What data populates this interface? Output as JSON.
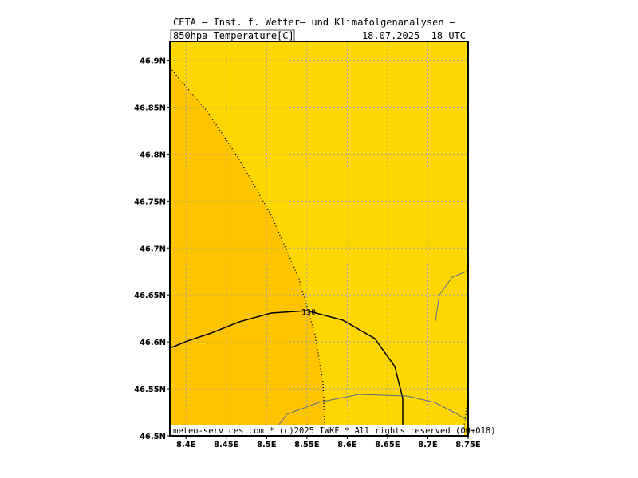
{
  "header": {
    "line1": "CETA – Inst. f. Wetter– und Klimafolgenanalysen –",
    "variable": "850hpa_Temperature[C]",
    "datetime": "18.07.2025  18 UTC"
  },
  "map": {
    "xlim": [
      8.38,
      8.75
    ],
    "ylim": [
      46.5,
      46.92
    ],
    "xticks": [
      {
        "value": 8.4,
        "label": "8.4E"
      },
      {
        "value": 8.45,
        "label": "8.45E"
      },
      {
        "value": 8.5,
        "label": "8.5E"
      },
      {
        "value": 8.55,
        "label": "8.55E"
      },
      {
        "value": 8.6,
        "label": "8.6E"
      },
      {
        "value": 8.65,
        "label": "8.65E"
      },
      {
        "value": 8.7,
        "label": "8.7E"
      },
      {
        "value": 8.75,
        "label": "8.75E"
      }
    ],
    "yticks": [
      {
        "value": 46.5,
        "label": "46.5N"
      },
      {
        "value": 46.55,
        "label": "46.55N"
      },
      {
        "value": 46.6,
        "label": "46.6N"
      },
      {
        "value": 46.65,
        "label": "46.65N"
      },
      {
        "value": 46.7,
        "label": "46.7N"
      },
      {
        "value": 46.75,
        "label": "46.75N"
      },
      {
        "value": 46.8,
        "label": "46.8N"
      },
      {
        "value": 46.85,
        "label": "46.85N"
      },
      {
        "value": 46.9,
        "label": "46.9N"
      }
    ],
    "contour_label": "130"
  },
  "footer": "meteo-services.com * (c)2025 IWKF * All rights reserved (00+018)"
}
